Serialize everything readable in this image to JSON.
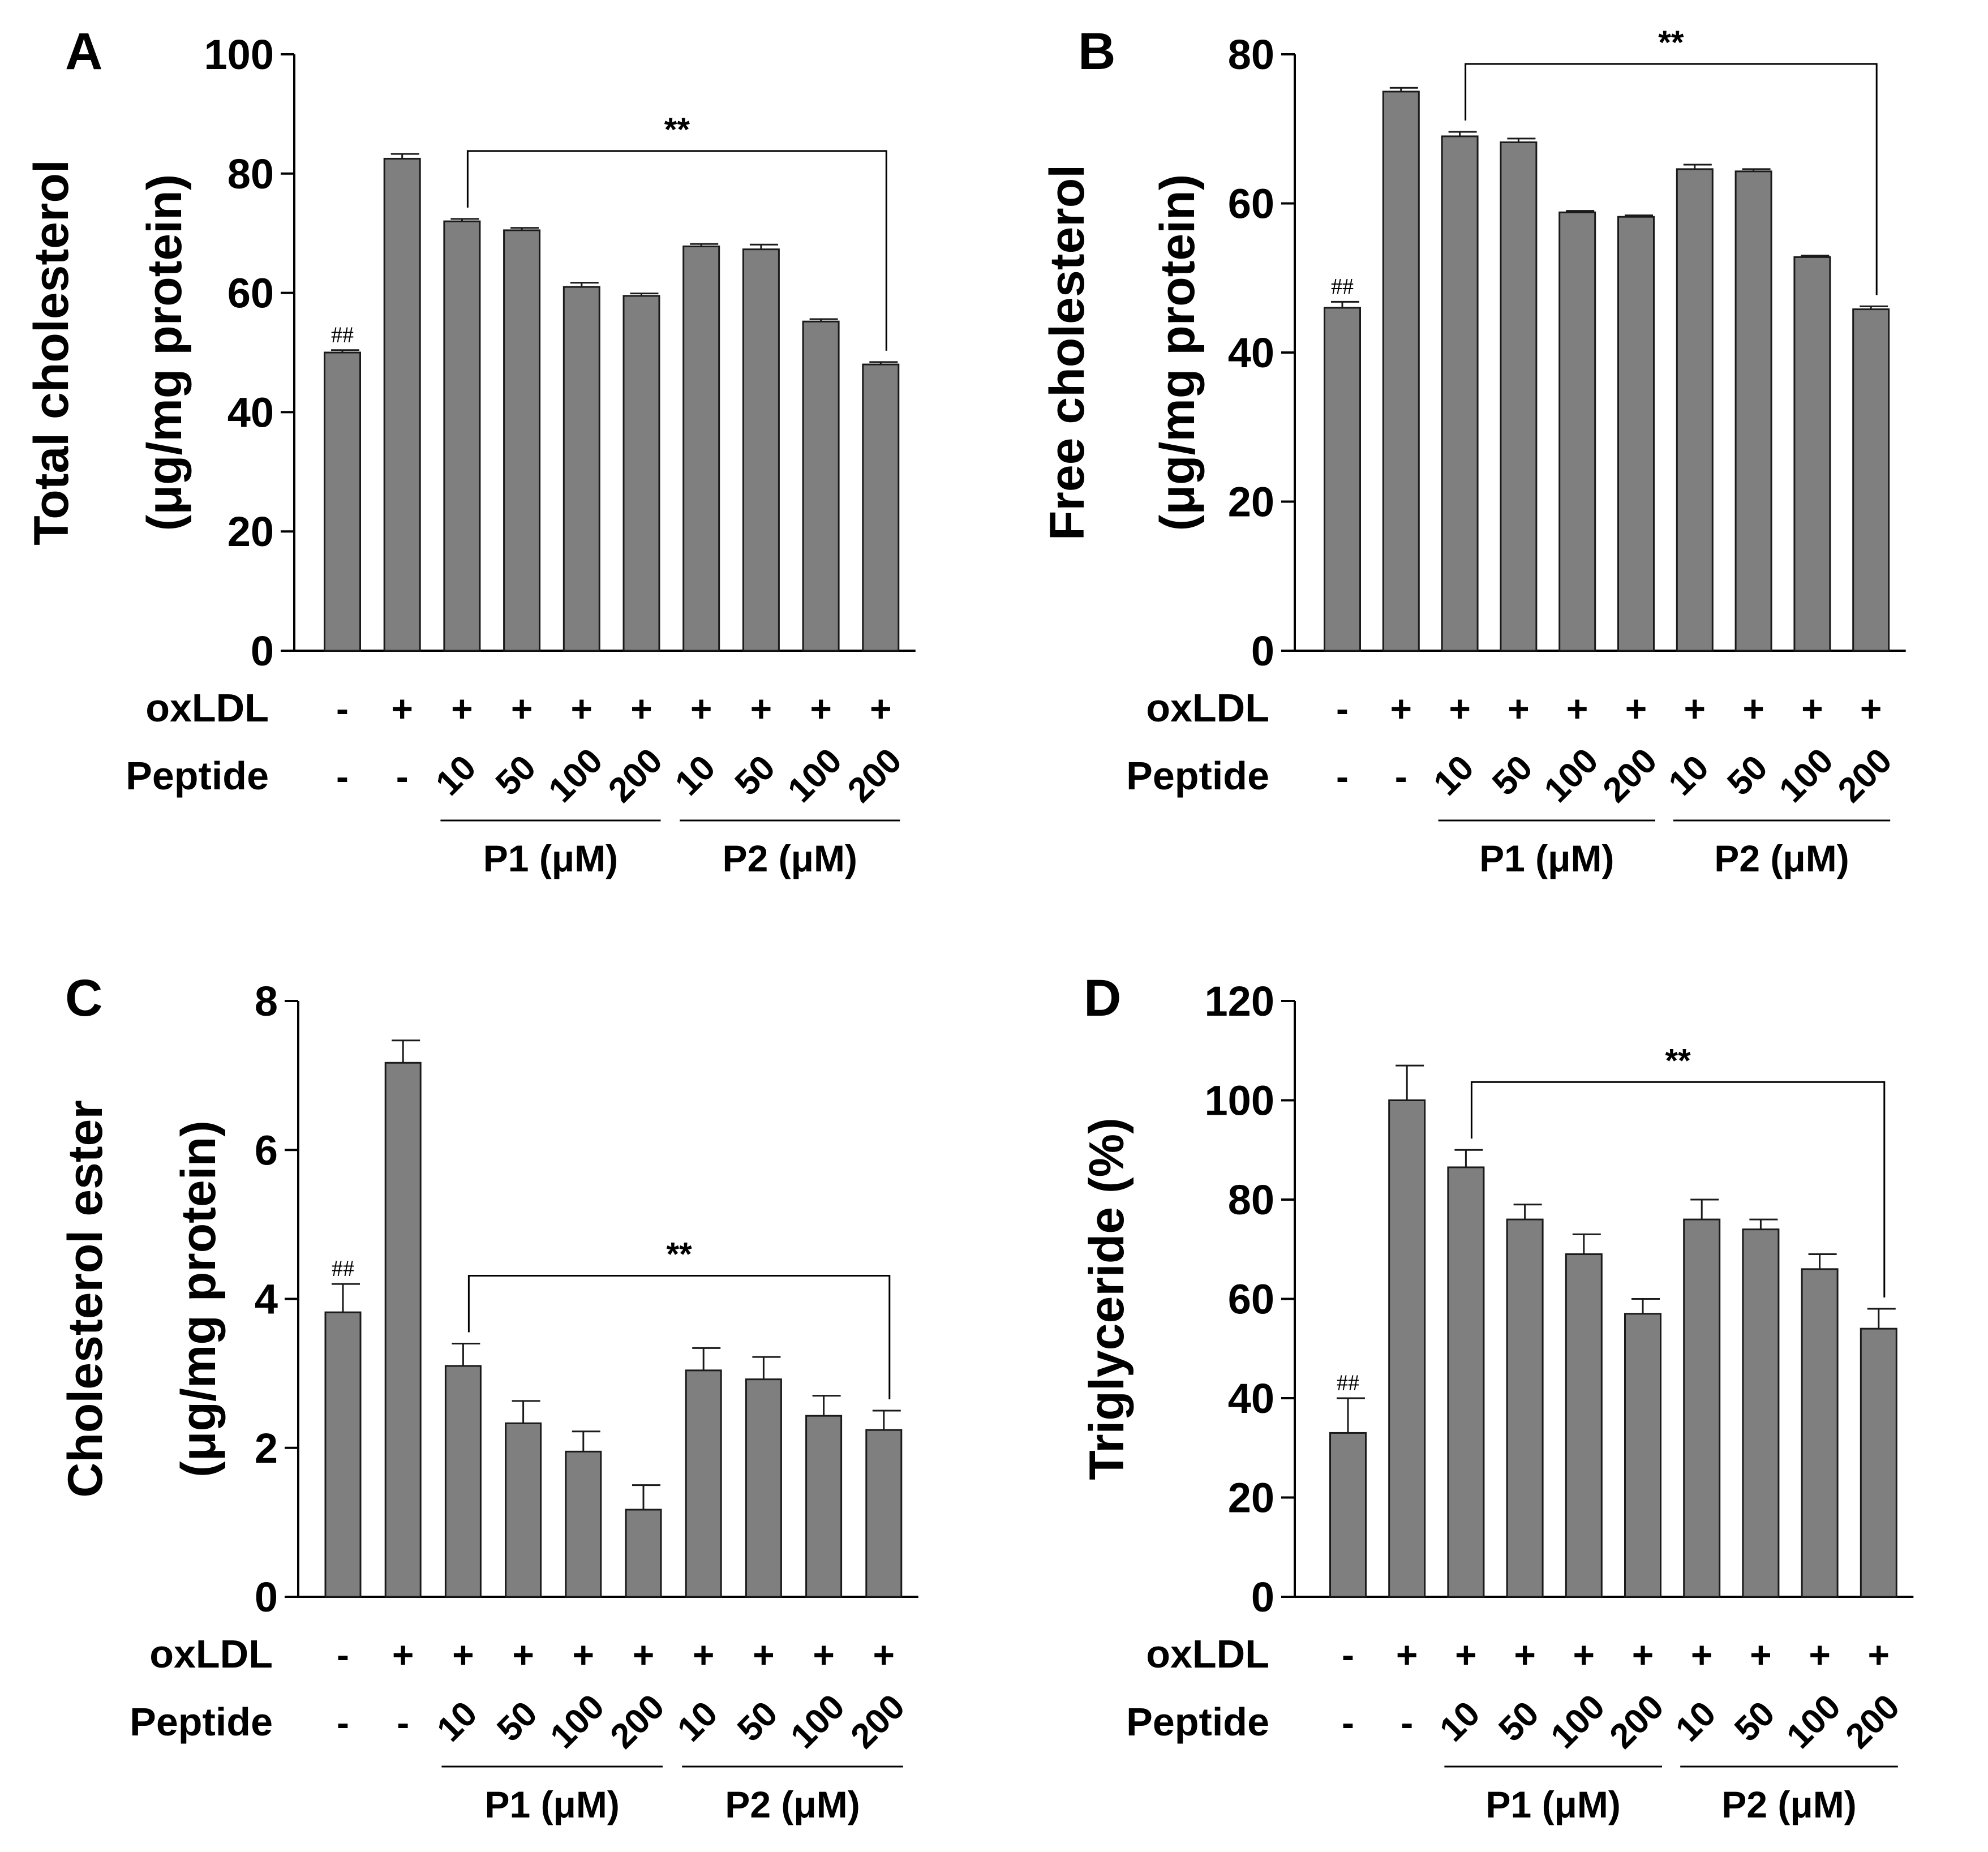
{
  "colors": {
    "bar_fill": "#7f7f7f",
    "bar_stroke": "#1a1a1a",
    "axis": "#000000",
    "text": "#000000",
    "background": "#ffffff"
  },
  "row_labels": {
    "oxldl": "oxLDL",
    "peptide": "Peptide"
  },
  "conditions": {
    "oxldl": [
      "-",
      "+",
      "+",
      "+",
      "+",
      "+",
      "+",
      "+",
      "+",
      "+"
    ],
    "peptide": [
      "-",
      "-",
      "10",
      "50",
      "100",
      "200",
      "10",
      "50",
      "100",
      "200"
    ]
  },
  "groups": [
    {
      "label": "P1 (μM)",
      "from": 2,
      "to": 5
    },
    {
      "label": "P2 (μM)",
      "from": 6,
      "to": 9
    }
  ],
  "chart_data": [
    {
      "panel": "A",
      "type": "bar",
      "ylabel": [
        "Total cholesterol",
        "(μg/mg protein)"
      ],
      "ylim": [
        0,
        100
      ],
      "yticks": [
        0,
        20,
        40,
        60,
        80,
        100
      ],
      "values": [
        50,
        82.5,
        72,
        70.5,
        61,
        59.5,
        67.8,
        67.3,
        55.2,
        48
      ],
      "errors": [
        0.4,
        0.8,
        0.4,
        0.4,
        0.7,
        0.4,
        0.4,
        0.8,
        0.4,
        0.4
      ],
      "control_marker": "##",
      "significance": {
        "label": "**",
        "from": 2,
        "to": 9
      }
    },
    {
      "panel": "B",
      "type": "bar",
      "ylabel": [
        "Free cholesterol",
        "(μg/mg protein)"
      ],
      "ylim": [
        0,
        80
      ],
      "yticks": [
        0,
        20,
        40,
        60,
        80
      ],
      "values": [
        46,
        75,
        69,
        68.2,
        58.8,
        58.2,
        64.6,
        64.3,
        52.8,
        45.8
      ],
      "errors": [
        0.8,
        0.5,
        0.6,
        0.5,
        0.2,
        0.2,
        0.6,
        0.3,
        0.2,
        0.4
      ],
      "control_marker": "##",
      "significance": {
        "label": "**",
        "from": 2,
        "to": 9
      }
    },
    {
      "panel": "C",
      "type": "bar",
      "ylabel": [
        "Cholesterol ester",
        "(μg/mg protein)"
      ],
      "ylim": [
        0,
        8
      ],
      "yticks": [
        0,
        2,
        4,
        6,
        8
      ],
      "values": [
        3.82,
        7.17,
        3.1,
        2.33,
        1.95,
        1.17,
        3.04,
        2.92,
        2.43,
        2.24
      ],
      "errors": [
        0.38,
        0.3,
        0.3,
        0.3,
        0.27,
        0.33,
        0.3,
        0.3,
        0.27,
        0.26
      ],
      "control_marker": "##",
      "significance": {
        "label": "**",
        "from": 2,
        "to": 9
      }
    },
    {
      "panel": "D",
      "type": "bar",
      "ylabel": [
        "Triglyceride (%)"
      ],
      "ylim": [
        0,
        120
      ],
      "yticks": [
        0,
        20,
        40,
        60,
        80,
        100,
        120
      ],
      "values": [
        33,
        100,
        86.5,
        76,
        69,
        57,
        76,
        74,
        66,
        54
      ],
      "errors": [
        7,
        7,
        3.5,
        3,
        4,
        3,
        4,
        2,
        3,
        4
      ],
      "control_marker": "##",
      "significance": {
        "label": "**",
        "from": 2,
        "to": 9
      }
    }
  ]
}
